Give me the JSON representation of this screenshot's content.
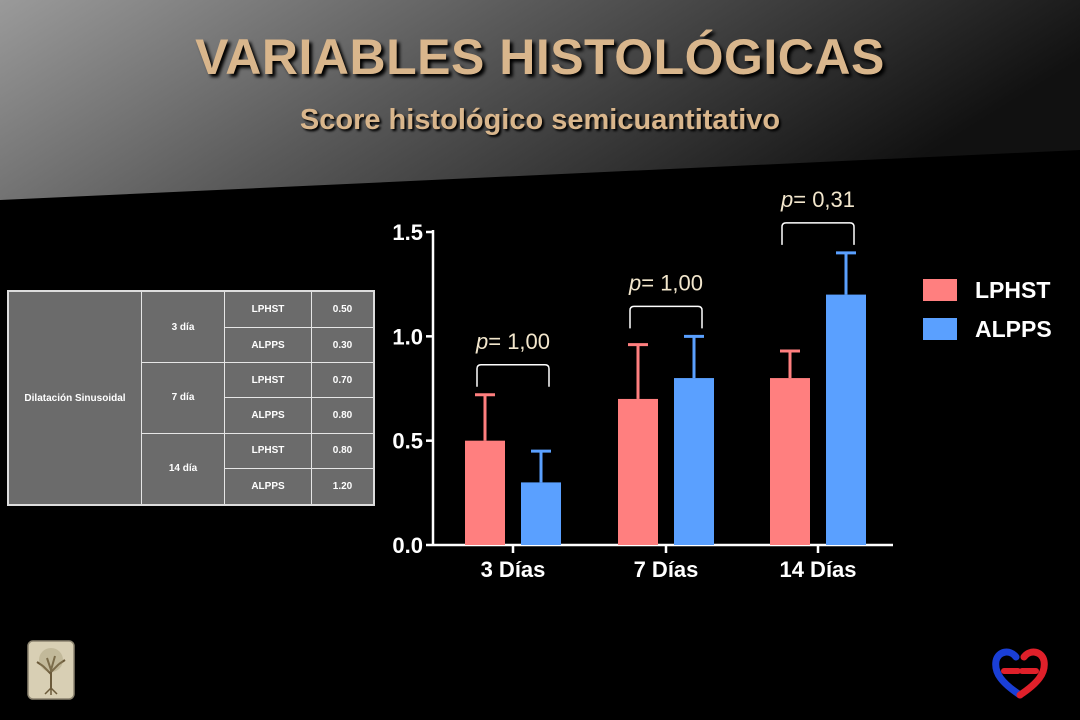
{
  "slide": {
    "title": "VARIABLES HISTOLÓGICAS",
    "subtitle": "Score histológico semicuantitativo"
  },
  "table": {
    "variable": "Dilatación Sinusoidal",
    "groups": [
      {
        "day": "3 día",
        "rows": [
          {
            "group": "LPHST",
            "value": "0.50"
          },
          {
            "group": "ALPPS",
            "value": "0.30"
          }
        ]
      },
      {
        "day": "7 día",
        "rows": [
          {
            "group": "LPHST",
            "value": "0.70"
          },
          {
            "group": "ALPPS",
            "value": "0.80"
          }
        ]
      },
      {
        "day": "14 día",
        "rows": [
          {
            "group": "LPHST",
            "value": "0.80"
          },
          {
            "group": "ALPPS",
            "value": "1.20"
          }
        ]
      }
    ]
  },
  "chart_data": {
    "type": "bar",
    "categories": [
      "3 Días",
      "7 Días",
      "14 Días"
    ],
    "series": [
      {
        "name": "LPHST",
        "values": [
          0.5,
          0.7,
          0.8
        ],
        "error": [
          0.22,
          0.26,
          0.13
        ],
        "color": "#ff7f7f"
      },
      {
        "name": "ALPPS",
        "values": [
          0.3,
          0.8,
          1.2
        ],
        "error": [
          0.15,
          0.2,
          0.2
        ],
        "color": "#5aa0ff"
      }
    ],
    "ylim": [
      0,
      1.5
    ],
    "yticks": [
      "0.0",
      "0.5",
      "1.0",
      "1.5"
    ],
    "annotations": [
      {
        "category": "3 Días",
        "p_symbol": "p",
        "p_text": "= 1,00"
      },
      {
        "category": "7 Días",
        "p_symbol": "p",
        "p_text": "= 1,00"
      },
      {
        "category": "14 Días",
        "p_symbol": "p",
        "p_text": "= 0,31"
      }
    ],
    "legend_position": "right",
    "xlabel": "",
    "ylabel": ""
  },
  "colors": {
    "title": "#d9b68c",
    "annotation": "#f2e6cc",
    "lphst": "#ff7f7f",
    "alpps": "#5aa0ff"
  },
  "logos": {
    "bottom_left": "tree-logo",
    "bottom_right": "heart-logo"
  }
}
